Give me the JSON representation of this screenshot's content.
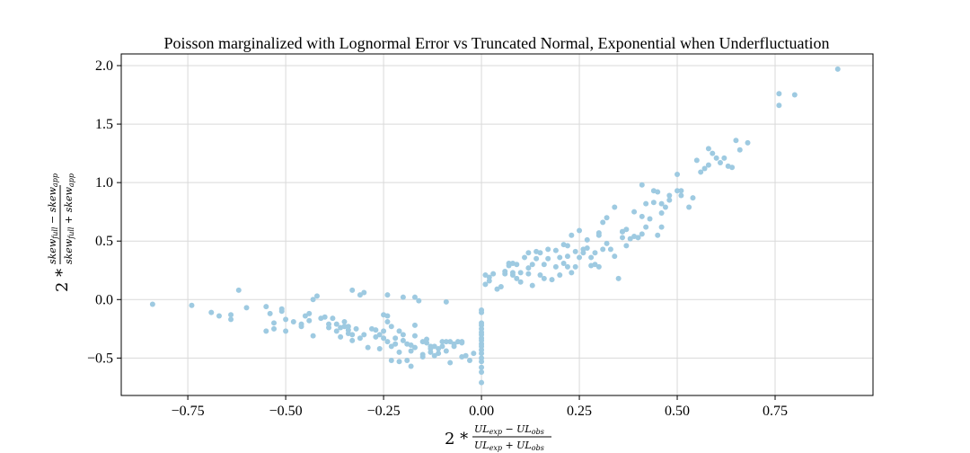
{
  "chart_data": {
    "type": "scatter",
    "title": "Poisson marginalized with Lognormal Error vs Truncated Normal, Exponential when Underfluctuation",
    "xlabel": "2 * (UL_exp - UL_obs) / (UL_exp + UL_obs)",
    "ylabel": "2 * (skew_full - skew_app) / (skew_full + skew_app)",
    "xlim": [
      -0.92,
      1.0
    ],
    "ylim": [
      -0.82,
      2.1
    ],
    "xticks": [
      -0.75,
      -0.5,
      -0.25,
      0.0,
      0.25,
      0.5,
      0.75
    ],
    "xtick_labels": [
      "−0.75",
      "−0.50",
      "−0.25",
      "0.00",
      "0.25",
      "0.50",
      "0.75"
    ],
    "yticks": [
      -0.5,
      0.0,
      0.5,
      1.0,
      1.5,
      2.0
    ],
    "ytick_labels": [
      "−0.5",
      "0.0",
      "0.5",
      "1.0",
      "1.5",
      "2.0"
    ],
    "grid": true,
    "marker_color": "#9ecae1",
    "points": [
      [
        -0.84,
        -0.04
      ],
      [
        -0.74,
        -0.05
      ],
      [
        -0.69,
        -0.11
      ],
      [
        -0.67,
        -0.14
      ],
      [
        -0.64,
        -0.13
      ],
      [
        -0.64,
        -0.17
      ],
      [
        -0.62,
        0.08
      ],
      [
        -0.6,
        -0.07
      ],
      [
        -0.55,
        -0.06
      ],
      [
        -0.55,
        -0.27
      ],
      [
        -0.54,
        -0.12
      ],
      [
        -0.53,
        -0.2
      ],
      [
        -0.53,
        -0.25
      ],
      [
        -0.51,
        -0.08
      ],
      [
        -0.51,
        -0.1
      ],
      [
        -0.5,
        -0.27
      ],
      [
        -0.5,
        -0.17
      ],
      [
        -0.48,
        -0.19
      ],
      [
        -0.46,
        -0.23
      ],
      [
        -0.46,
        -0.21
      ],
      [
        -0.45,
        -0.14
      ],
      [
        -0.44,
        -0.12
      ],
      [
        -0.44,
        -0.18
      ],
      [
        -0.43,
        -0.31
      ],
      [
        -0.43,
        0.0
      ],
      [
        -0.42,
        0.03
      ],
      [
        -0.41,
        -0.16
      ],
      [
        -0.4,
        -0.15
      ],
      [
        -0.39,
        -0.21
      ],
      [
        -0.39,
        -0.24
      ],
      [
        -0.38,
        -0.16
      ],
      [
        -0.37,
        -0.21
      ],
      [
        -0.37,
        -0.27
      ],
      [
        -0.36,
        -0.24
      ],
      [
        -0.36,
        -0.32
      ],
      [
        -0.35,
        -0.19
      ],
      [
        -0.35,
        -0.23
      ],
      [
        -0.34,
        -0.26
      ],
      [
        -0.34,
        -0.29
      ],
      [
        -0.34,
        -0.23
      ],
      [
        -0.33,
        -0.3
      ],
      [
        -0.33,
        -0.35
      ],
      [
        -0.33,
        0.08
      ],
      [
        -0.32,
        -0.25
      ],
      [
        -0.31,
        -0.33
      ],
      [
        -0.31,
        0.04
      ],
      [
        -0.3,
        0.06
      ],
      [
        -0.3,
        -0.3
      ],
      [
        -0.29,
        -0.41
      ],
      [
        -0.28,
        -0.25
      ],
      [
        -0.27,
        -0.26
      ],
      [
        -0.27,
        -0.32
      ],
      [
        -0.26,
        -0.3
      ],
      [
        -0.26,
        -0.42
      ],
      [
        -0.25,
        -0.13
      ],
      [
        -0.25,
        -0.27
      ],
      [
        -0.25,
        -0.33
      ],
      [
        -0.24,
        -0.14
      ],
      [
        -0.24,
        -0.19
      ],
      [
        -0.24,
        -0.36
      ],
      [
        -0.24,
        0.04
      ],
      [
        -0.23,
        -0.23
      ],
      [
        -0.23,
        -0.4
      ],
      [
        -0.23,
        -0.52
      ],
      [
        -0.22,
        -0.33
      ],
      [
        -0.22,
        -0.38
      ],
      [
        -0.21,
        -0.27
      ],
      [
        -0.21,
        -0.45
      ],
      [
        -0.21,
        -0.53
      ],
      [
        -0.2,
        0.02
      ],
      [
        -0.2,
        -0.35
      ],
      [
        -0.2,
        -0.3
      ],
      [
        -0.19,
        -0.38
      ],
      [
        -0.19,
        -0.52
      ],
      [
        -0.18,
        -0.39
      ],
      [
        -0.18,
        -0.44
      ],
      [
        -0.18,
        -0.57
      ],
      [
        -0.17,
        -0.22
      ],
      [
        -0.17,
        0.02
      ],
      [
        -0.17,
        -0.41
      ],
      [
        -0.17,
        -0.31
      ],
      [
        -0.16,
        -0.01
      ],
      [
        -0.15,
        -0.47
      ],
      [
        -0.15,
        -0.49
      ],
      [
        -0.15,
        -0.36
      ],
      [
        -0.14,
        -0.34
      ],
      [
        -0.14,
        -0.37
      ],
      [
        -0.13,
        -0.45
      ],
      [
        -0.13,
        -0.4
      ],
      [
        -0.13,
        -0.42
      ],
      [
        -0.12,
        -0.48
      ],
      [
        -0.12,
        -0.4
      ],
      [
        -0.11,
        -0.42
      ],
      [
        -0.11,
        -0.46
      ],
      [
        -0.1,
        -0.36
      ],
      [
        -0.1,
        -0.4
      ],
      [
        -0.09,
        -0.02
      ],
      [
        -0.09,
        -0.36
      ],
      [
        -0.09,
        -0.44
      ],
      [
        -0.08,
        -0.36
      ],
      [
        -0.08,
        -0.54
      ],
      [
        -0.07,
        -0.38
      ],
      [
        -0.07,
        -0.4
      ],
      [
        -0.06,
        -0.36
      ],
      [
        -0.05,
        -0.36
      ],
      [
        -0.05,
        -0.49
      ],
      [
        -0.05,
        -0.37
      ],
      [
        -0.04,
        -0.48
      ],
      [
        -0.03,
        -0.52
      ],
      [
        -0.02,
        -0.46
      ],
      [
        0.0,
        -0.09
      ],
      [
        0.0,
        -0.11
      ],
      [
        0.0,
        -0.2
      ],
      [
        0.0,
        -0.22
      ],
      [
        0.0,
        -0.25
      ],
      [
        0.0,
        -0.28
      ],
      [
        0.0,
        -0.3
      ],
      [
        0.0,
        -0.33
      ],
      [
        0.0,
        -0.35
      ],
      [
        0.0,
        -0.38
      ],
      [
        0.0,
        -0.4
      ],
      [
        0.0,
        -0.43
      ],
      [
        0.0,
        -0.46
      ],
      [
        0.0,
        -0.5
      ],
      [
        0.0,
        -0.53
      ],
      [
        0.0,
        -0.58
      ],
      [
        0.0,
        -0.62
      ],
      [
        0.0,
        -0.71
      ],
      [
        0.01,
        0.13
      ],
      [
        0.01,
        0.21
      ],
      [
        0.02,
        0.16
      ],
      [
        0.02,
        0.19
      ],
      [
        0.03,
        0.22
      ],
      [
        0.04,
        0.09
      ],
      [
        0.05,
        0.11
      ],
      [
        0.06,
        0.22
      ],
      [
        0.06,
        0.24
      ],
      [
        0.07,
        0.31
      ],
      [
        0.07,
        0.29
      ],
      [
        0.08,
        0.21
      ],
      [
        0.08,
        0.23
      ],
      [
        0.08,
        0.31
      ],
      [
        0.09,
        0.18
      ],
      [
        0.09,
        0.3
      ],
      [
        0.1,
        0.15
      ],
      [
        0.1,
        0.23
      ],
      [
        0.11,
        0.36
      ],
      [
        0.12,
        0.4
      ],
      [
        0.12,
        0.22
      ],
      [
        0.12,
        0.27
      ],
      [
        0.13,
        0.12
      ],
      [
        0.13,
        0.3
      ],
      [
        0.14,
        0.35
      ],
      [
        0.14,
        0.41
      ],
      [
        0.15,
        0.21
      ],
      [
        0.15,
        0.4
      ],
      [
        0.16,
        0.3
      ],
      [
        0.16,
        0.18
      ],
      [
        0.17,
        0.35
      ],
      [
        0.17,
        0.43
      ],
      [
        0.18,
        0.17
      ],
      [
        0.19,
        0.42
      ],
      [
        0.19,
        0.28
      ],
      [
        0.2,
        0.21
      ],
      [
        0.2,
        0.36
      ],
      [
        0.21,
        0.31
      ],
      [
        0.21,
        0.47
      ],
      [
        0.22,
        0.37
      ],
      [
        0.22,
        0.28
      ],
      [
        0.22,
        0.46
      ],
      [
        0.23,
        0.23
      ],
      [
        0.23,
        0.55
      ],
      [
        0.24,
        0.41
      ],
      [
        0.24,
        0.28
      ],
      [
        0.25,
        0.59
      ],
      [
        0.25,
        0.36
      ],
      [
        0.26,
        0.4
      ],
      [
        0.26,
        0.43
      ],
      [
        0.27,
        0.51
      ],
      [
        0.28,
        0.29
      ],
      [
        0.28,
        0.36
      ],
      [
        0.29,
        0.3
      ],
      [
        0.29,
        0.4
      ],
      [
        0.3,
        0.55
      ],
      [
        0.3,
        0.57
      ],
      [
        0.3,
        0.28
      ],
      [
        0.31,
        0.66
      ],
      [
        0.31,
        0.43
      ],
      [
        0.32,
        0.48
      ],
      [
        0.32,
        0.7
      ],
      [
        0.33,
        0.43
      ],
      [
        0.34,
        0.37
      ],
      [
        0.34,
        0.79
      ],
      [
        0.35,
        0.18
      ],
      [
        0.36,
        0.53
      ],
      [
        0.36,
        0.58
      ],
      [
        0.37,
        0.46
      ],
      [
        0.37,
        0.6
      ],
      [
        0.38,
        0.52
      ],
      [
        0.39,
        0.75
      ],
      [
        0.39,
        0.54
      ],
      [
        0.4,
        0.53
      ],
      [
        0.4,
        0.53
      ],
      [
        0.41,
        0.56
      ],
      [
        0.41,
        0.71
      ],
      [
        0.42,
        0.62
      ],
      [
        0.42,
        0.82
      ],
      [
        0.43,
        0.69
      ],
      [
        0.44,
        0.83
      ],
      [
        0.44,
        0.93
      ],
      [
        0.45,
        0.55
      ],
      [
        0.46,
        0.62
      ],
      [
        0.46,
        0.82
      ],
      [
        0.47,
        0.79
      ],
      [
        0.48,
        0.85
      ],
      [
        0.48,
        0.89
      ],
      [
        0.5,
        0.93
      ],
      [
        0.5,
        1.07
      ],
      [
        0.51,
        0.89
      ],
      [
        0.53,
        0.79
      ],
      [
        0.54,
        0.87
      ],
      [
        0.55,
        1.19
      ],
      [
        0.56,
        1.09
      ],
      [
        0.57,
        1.12
      ],
      [
        0.58,
        1.15
      ],
      [
        0.58,
        1.29
      ],
      [
        0.59,
        1.25
      ],
      [
        0.6,
        1.21
      ],
      [
        0.61,
        1.17
      ],
      [
        0.62,
        1.21
      ],
      [
        0.63,
        1.14
      ],
      [
        0.64,
        1.13
      ],
      [
        0.65,
        1.36
      ],
      [
        0.66,
        1.28
      ],
      [
        0.68,
        1.34
      ],
      [
        0.76,
        1.76
      ],
      [
        0.76,
        1.66
      ],
      [
        0.8,
        1.75
      ],
      [
        0.91,
        1.97
      ],
      [
        0.41,
        0.98
      ],
      [
        0.45,
        0.92
      ],
      [
        0.51,
        0.93
      ],
      [
        0.46,
        0.74
      ],
      [
        0.36,
        0.58
      ],
      [
        0.27,
        0.44
      ]
    ]
  }
}
